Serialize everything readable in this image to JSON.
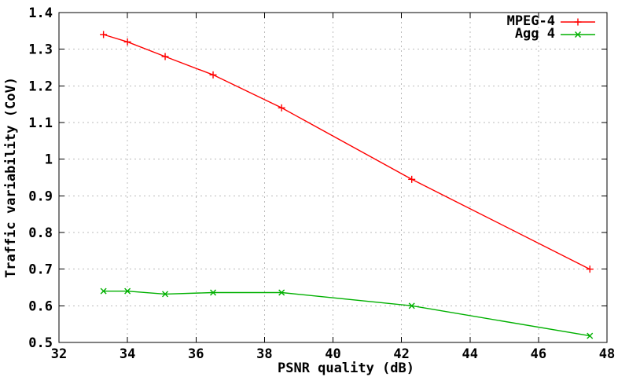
{
  "chart_data": {
    "type": "line",
    "title": "",
    "xlabel": "PSNR quality (dB)",
    "ylabel": "Traffic variability (CoV)",
    "xlim": [
      32,
      48
    ],
    "ylim": [
      0.5,
      1.4
    ],
    "xticks": [
      32,
      34,
      36,
      38,
      40,
      42,
      44,
      46,
      48
    ],
    "xtick_labels": [
      "32",
      "34",
      "36",
      "38",
      "40",
      "42",
      "44",
      "46",
      "48"
    ],
    "yticks": [
      0.5,
      0.6,
      0.7,
      0.8,
      0.9,
      1.0,
      1.1,
      1.2,
      1.3,
      1.4
    ],
    "ytick_labels": [
      "0.5",
      "0.6",
      "0.7",
      "0.8",
      "0.9",
      "1",
      "1.1",
      "1.2",
      "1.3",
      "1.4"
    ],
    "grid": true,
    "legend_position": "top-right-inside",
    "x": [
      33.3,
      34.0,
      35.1,
      36.5,
      38.5,
      42.3,
      47.5
    ],
    "series": [
      {
        "name": "MPEG-4",
        "color": "#ff0000",
        "marker": "plus",
        "values": [
          1.34,
          1.32,
          1.28,
          1.23,
          1.14,
          0.945,
          0.7
        ]
      },
      {
        "name": "Agg 4",
        "color": "#00b000",
        "marker": "x",
        "values": [
          0.64,
          0.64,
          0.632,
          0.636,
          0.636,
          0.6,
          0.518
        ]
      }
    ],
    "style": {
      "grid_color": "#bbbbbb",
      "axis_color": "#000000",
      "background_color": "#ffffff"
    }
  }
}
